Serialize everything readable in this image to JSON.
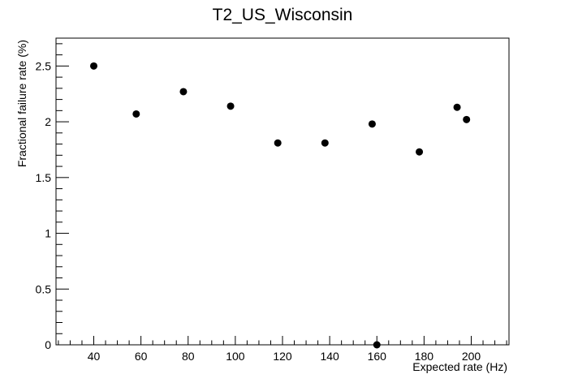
{
  "chart_data": {
    "type": "scatter",
    "title": "T2_US_Wisconsin",
    "xlabel": "Expected rate (Hz)",
    "ylabel": "Fractional failure rate (%)",
    "xlim": [
      24,
      216
    ],
    "ylim": [
      0,
      2.75
    ],
    "x_ticks": [
      40,
      60,
      80,
      100,
      120,
      140,
      160,
      180,
      200
    ],
    "y_ticks": [
      0,
      0.5,
      1,
      1.5,
      2,
      2.5
    ],
    "y_tick_labels": [
      "0",
      "0.5",
      "1",
      "1.5",
      "2",
      "2.5"
    ],
    "grid": false,
    "marker_color": "#000000",
    "points": [
      {
        "x": 40,
        "y": 2.5
      },
      {
        "x": 58,
        "y": 2.07
      },
      {
        "x": 78,
        "y": 2.27
      },
      {
        "x": 98,
        "y": 2.14
      },
      {
        "x": 118,
        "y": 1.81
      },
      {
        "x": 138,
        "y": 1.81
      },
      {
        "x": 158,
        "y": 1.98
      },
      {
        "x": 160,
        "y": 0.0
      },
      {
        "x": 178,
        "y": 1.73
      },
      {
        "x": 194,
        "y": 2.13
      },
      {
        "x": 198,
        "y": 2.02
      }
    ]
  }
}
